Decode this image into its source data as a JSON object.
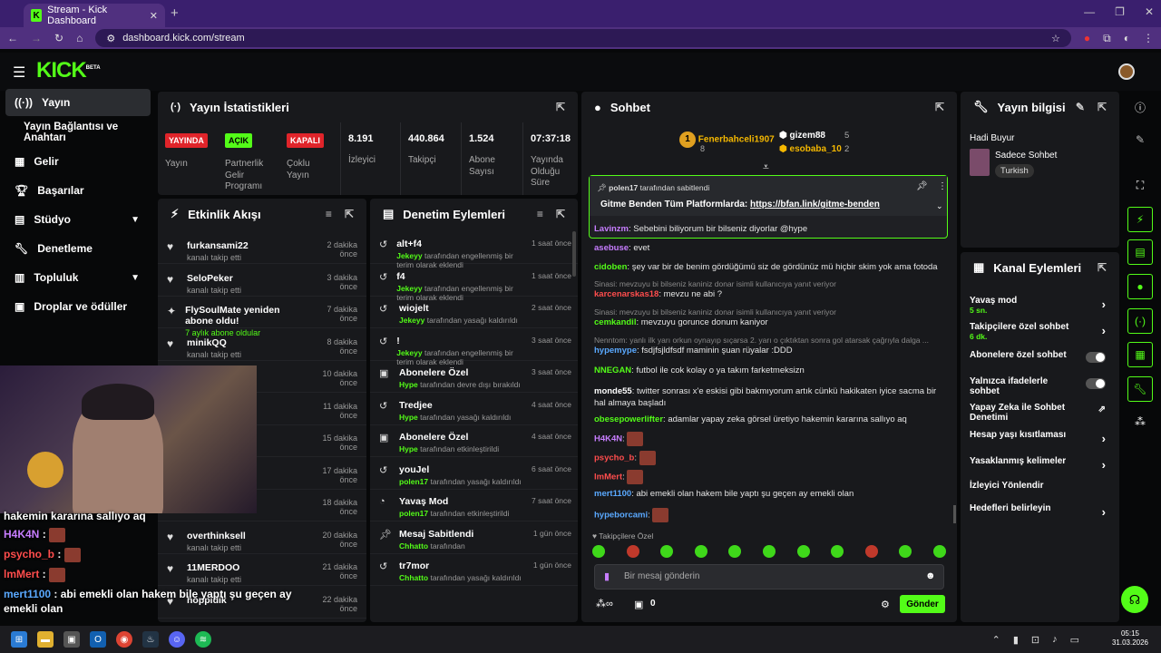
{
  "browser": {
    "tab_title": "Stream - Kick Dashboard",
    "url": "dashboard.kick.com/stream",
    "new_tab": "+"
  },
  "brand": {
    "logo": "KICK",
    "beta": "BETA",
    "accent": "#53fc18"
  },
  "sidebar": {
    "items": [
      {
        "label": "Yayın",
        "icon": "broadcast-icon",
        "active": true
      },
      {
        "label": "Yayın Bağlantısı ve Anahtarı"
      },
      {
        "label": "Gelir",
        "icon": "revenue-icon"
      },
      {
        "label": "Başarılar",
        "icon": "trophy-icon"
      },
      {
        "label": "Stüdyo",
        "icon": "studio-icon",
        "expandable": true
      },
      {
        "label": "Denetleme",
        "icon": "wrench-icon"
      },
      {
        "label": "Topluluk",
        "icon": "community-icon",
        "expandable": true
      },
      {
        "label": "Droplar ve ödüller",
        "icon": "drops-icon"
      }
    ]
  },
  "stats": {
    "title": "Yayın İstatistikleri",
    "cells": [
      {
        "badge": "YAYINDA",
        "label": "Yayın"
      },
      {
        "badge": "AÇIK",
        "label": "Partnerlik Gelir Programı"
      },
      {
        "badge": "KAPALI",
        "label": "Çoklu Yayın"
      },
      {
        "value": "8.191",
        "label": "İzleyici"
      },
      {
        "value": "440.864",
        "label": "Takipçi"
      },
      {
        "value": "1.524",
        "label": "Abone Sayısı"
      },
      {
        "value": "07:37:18",
        "label": "Yayında Olduğu Süre"
      }
    ]
  },
  "activity": {
    "title": "Etkinlik Akışı",
    "rows": [
      {
        "name": "furkansami22",
        "sub": "kanalı takip etti",
        "time": "2 dakika önce"
      },
      {
        "name": "SeloPeker",
        "sub": "kanalı takip etti",
        "time": "3 dakika önce"
      },
      {
        "name": "FlySoulMate yeniden abone oldu!",
        "sub": "7 aylık abone oldular",
        "time": "7 dakika önce"
      },
      {
        "name": "minikQQ",
        "sub": "kanalı takip etti",
        "time": "8 dakika önce"
      },
      {
        "name": "",
        "sub": "",
        "time": "10 dakika önce"
      },
      {
        "name": "",
        "sub": "",
        "time": "11 dakika önce"
      },
      {
        "name": "",
        "sub": "",
        "time": "15 dakika önce"
      },
      {
        "name": "",
        "sub": "",
        "time": "17 dakika önce"
      },
      {
        "name": "emrebldm",
        "sub": "",
        "time": "18 dakika önce"
      },
      {
        "name": "overthinksell",
        "sub": "kanalı takip etti",
        "time": "20 dakika önce"
      },
      {
        "name": "11MERDOO",
        "sub": "kanalı takip etti",
        "time": "21 dakika önce"
      },
      {
        "name": "hoppidik",
        "sub": "",
        "time": "22 dakika önce"
      }
    ]
  },
  "mod": {
    "title": "Denetim Eylemleri",
    "rows": [
      {
        "name": "alt+f4",
        "by": "Jekeyy",
        "sub": "tarafından engellenmiş bir terim olarak eklendi",
        "time": "1 saat önce"
      },
      {
        "name": "f4",
        "by": "Jekeyy",
        "sub": "tarafından engellenmiş bir terim olarak eklendi",
        "time": "1 saat önce"
      },
      {
        "name": "wiojelt",
        "by": "Jekeyy",
        "sub": "tarafından yasağı kaldırıldı",
        "time": "2 saat önce"
      },
      {
        "name": "!",
        "by": "Jekeyy",
        "sub": "tarafından engellenmiş bir terim olarak eklendi",
        "time": "3 saat önce"
      },
      {
        "name": "Abonelere Özel",
        "by": "Hype",
        "sub": "tarafından devre dışı bırakıldı",
        "time": "3 saat önce"
      },
      {
        "name": "Tredjee",
        "by": "Hype",
        "sub": "tarafından yasağı kaldırıldı",
        "time": "4 saat önce"
      },
      {
        "name": "Abonelere Özel",
        "by": "Hype",
        "sub": "tarafından etkinleştirildi",
        "time": "4 saat önce"
      },
      {
        "name": "youJel",
        "by": "polen17",
        "sub": "tarafından yasağı kaldırıldı",
        "time": "6 saat önce"
      },
      {
        "name": "Yavaş Mod",
        "by": "polen17",
        "sub": "tarafından etkinleştirildi",
        "time": "7 saat önce"
      },
      {
        "name": "Mesaj Sabitlendi",
        "by": "Chhatto",
        "sub": "tarafından",
        "time": "1 gün önce"
      },
      {
        "name": "tr7mor",
        "by": "Chhatto",
        "sub": "tarafından yasağı kaldırıldı",
        "time": "1 gün önce"
      }
    ]
  },
  "chat": {
    "title": "Sohbet",
    "top_gifters": [
      {
        "rank": "1",
        "name": "Fenerbahceli1907",
        "count": "8"
      },
      {
        "name": "gizem88",
        "count": "5"
      },
      {
        "name": "esobaba_10",
        "count": "2"
      }
    ],
    "pinned": {
      "by": "polen17",
      "by_suffix": "tarafından sabitlendi",
      "text": "Gitme Benden Tüm Platformlarda: ",
      "link": "https://bfan.link/gitme-benden"
    },
    "messages": [
      {
        "user": "Lavinzm",
        "color": "#c77dff",
        "text": "Sebebini biliyorum bir bilseniz diyorlar @hype"
      },
      {
        "user": "asebuse",
        "color": "#c77dff",
        "text": "evet"
      },
      {
        "user": "cidoben",
        "color": "#53fc18",
        "text": "şey var bir de benim gördüğümü siz de gördünüz mü hiçbir skim yok ama fotoda"
      },
      {
        "reply": "Sinasi: mevzuyu bi bilseniz kaniniz donar isimli kullanıcıya yanıt veriyor",
        "user": "karcenarskas18",
        "color": "#ff4d4d",
        "text": "mevzu ne abi ?"
      },
      {
        "reply": "Sinasi: mevzuyu bi bilseniz kaniniz donar isimli kullanıcıya yanıt veriyor",
        "user": "cemkandil",
        "color": "#53fc18",
        "text": "mevzuyu gorunce donum kaniyor"
      },
      {
        "reply": "Nenntom: yanlı ilk yarı orkun oynayıp sıçarsa 2. yarı o çıktıktan sonra gol atarsak çağrıyla dalga ...",
        "user": "hypemype",
        "color": "#5aa9ff",
        "text": "fsdjfsjldfsdf maminin şuan rüyalar :DDD"
      },
      {
        "user": "NNEGAN",
        "color": "#53fc18",
        "text": "futbol ile cok kolay o ya takım farketmeksizn"
      },
      {
        "user": "monde55",
        "color": "#ffffff",
        "text": "twitter sonrası x'e eskisi gibi bakmıyorum artık cünkü hakikaten iyice sacma bir hal almaya başladı"
      },
      {
        "user": "obesepowerlifter",
        "color": "#53fc18",
        "text": "adamlar yapay zeka görsel üretiyo hakemin kararına sallıyo aq"
      },
      {
        "user": "H4K4N",
        "color": "#c77dff",
        "text": ""
      },
      {
        "user": "psycho_b",
        "color": "#ff4d4d",
        "text": ""
      },
      {
        "user": "lmMert",
        "color": "#ff4d4d",
        "text": ""
      },
      {
        "user": "mert1100",
        "color": "#5aa9ff",
        "text": "abi emekli olan hakem bile yaptı şu geçen ay emekli olan"
      },
      {
        "user": "hypeborcami",
        "color": "#5aa9ff",
        "text": ""
      }
    ],
    "followers_only": "Takipçilere Özel",
    "input_placeholder": "Bir mesaj gönderin",
    "points": "0",
    "send_label": "Gönder"
  },
  "stream_info": {
    "title": "Yayın bilgisi",
    "stream_title": "Hadi Buyur",
    "category": "Sadece Sohbet",
    "language": "Turkish"
  },
  "channel_actions": {
    "title": "Kanal Eylemleri",
    "items": [
      {
        "label": "Yavaş mod",
        "sub": "5 sn.",
        "type": "arrow"
      },
      {
        "label": "Takipçilere özel sohbet",
        "sub": "6 dk.",
        "type": "arrow"
      },
      {
        "label": "Abonelere özel sohbet",
        "type": "toggle"
      },
      {
        "label": "Yalnızca ifadelerle sohbet",
        "type": "toggle"
      },
      {
        "label": "Yapay Zeka ile Sohbet Denetimi",
        "type": "external"
      },
      {
        "label": "Hesap yaşı kısıtlaması",
        "type": "arrow"
      },
      {
        "label": "Yasaklanmış kelimeler",
        "type": "arrow"
      },
      {
        "label": "İzleyici Yönlendir",
        "type": "none"
      },
      {
        "label": "Hedefleri belirleyin",
        "type": "arrow"
      }
    ]
  },
  "overlay_chat": [
    {
      "text": "hakemin kararına sallıyo aq"
    },
    {
      "user": "H4K4N",
      "color": "#c77dff"
    },
    {
      "user": "psycho_b",
      "color": "#ff4d4d"
    },
    {
      "user": "lmMert",
      "color": "#ff4d4d"
    },
    {
      "user": "mert1100",
      "color": "#5aa9ff",
      "text": "abi emekli olan hakem bile yaptı şu geçen ay emekli olan"
    }
  ],
  "taskbar": {
    "time": "05:15",
    "date": "31.03.2026"
  }
}
